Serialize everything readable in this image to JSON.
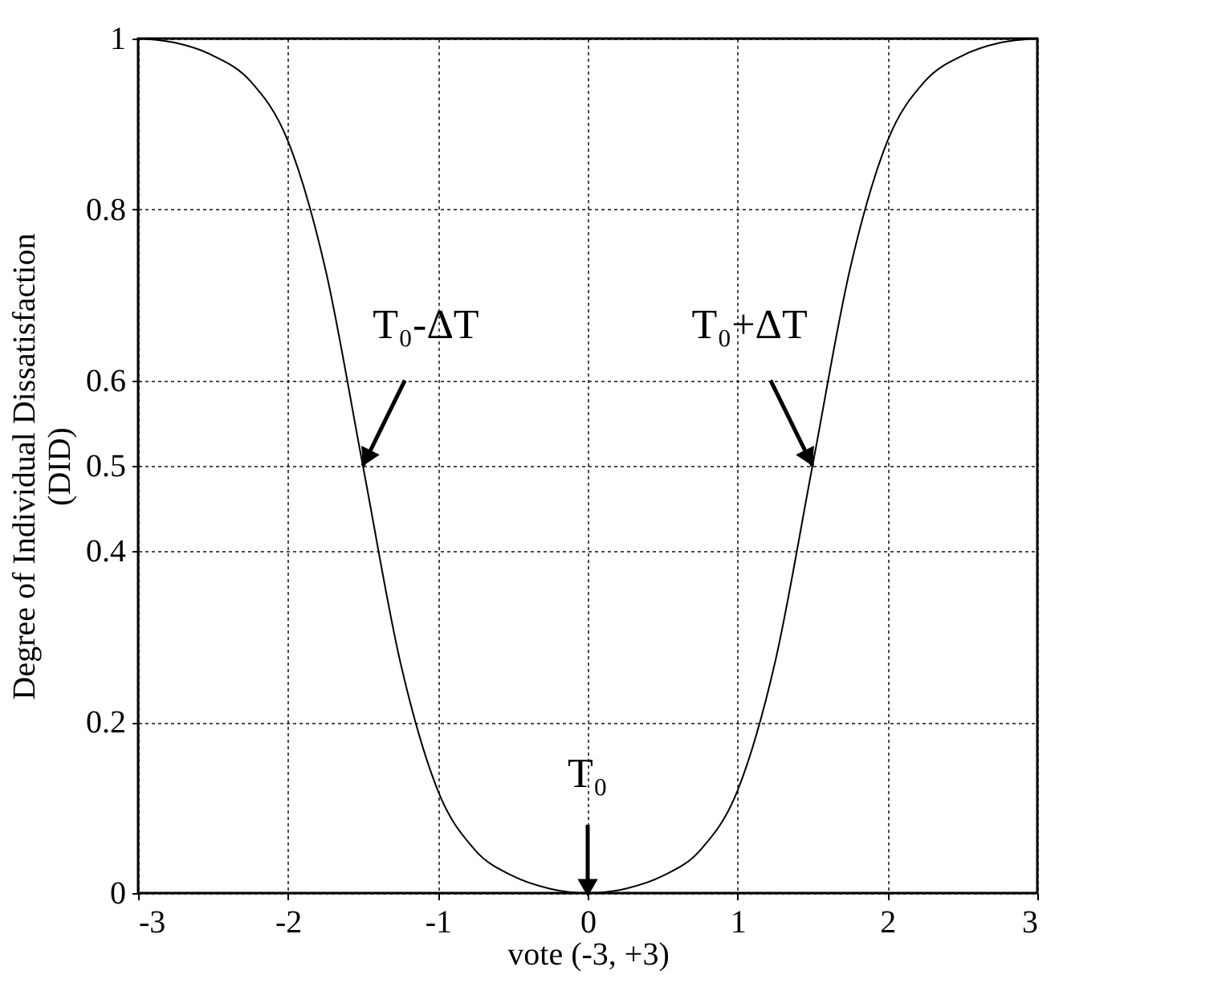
{
  "chart_data": {
    "type": "line",
    "xlabel": "vote (-3, +3)",
    "ylabel": "Degree of Individual Dissatisfaction\n(DID)",
    "x": [
      -3,
      -2.75,
      -2.5,
      -2.25,
      -2,
      -1.75,
      -1.5,
      -1.25,
      -1,
      -0.75,
      -0.5,
      -0.25,
      0,
      0.25,
      0.5,
      0.75,
      1,
      1.25,
      1.5,
      1.75,
      2,
      2.25,
      2.5,
      2.75,
      3
    ],
    "series": [
      {
        "color": "#000000",
        "values": [
          1.0,
          0.995,
          0.98,
          0.95,
          0.88,
          0.73,
          0.5,
          0.27,
          0.12,
          0.05,
          0.02,
          0.005,
          0,
          0.005,
          0.02,
          0.05,
          0.12,
          0.27,
          0.5,
          0.73,
          0.88,
          0.95,
          0.98,
          0.995,
          1.0
        ]
      }
    ],
    "xlim": [
      -3,
      3
    ],
    "ylim": [
      0,
      1
    ],
    "xticks": [
      -3,
      -2,
      -1,
      0,
      1,
      2,
      3
    ],
    "yticks": [
      0,
      0.2,
      0.4,
      0.5,
      0.6,
      0.8,
      1
    ],
    "grid": true,
    "marker": "none",
    "line_style": "solid",
    "annotations": [
      {
        "text": "T₀-ΔT",
        "x": -1.5,
        "y": 0.5
      },
      {
        "text": "T₀+ΔT",
        "x": 1.5,
        "y": 0.5
      },
      {
        "text": "T₀",
        "x": 0,
        "y": 0
      }
    ]
  }
}
